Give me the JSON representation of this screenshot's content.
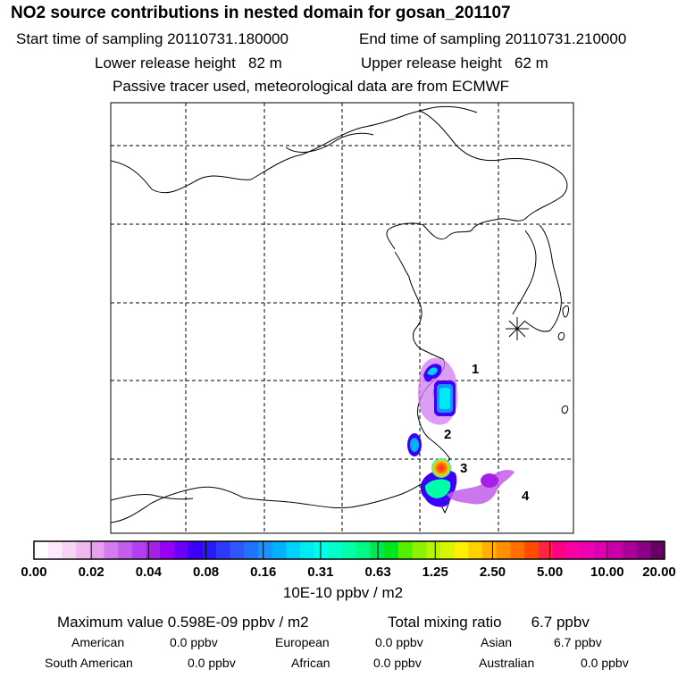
{
  "header": {
    "title": "NO2 source contributions in nested domain for gosan_201107",
    "start_time": "Start time of sampling 20110731.180000",
    "end_time": "End time of sampling 20110731.210000",
    "lower_release": "Lower release height   82 m",
    "upper_release": "Upper release height   62 m",
    "tracer_note": "Passive tracer used, meteorological data are from ECMWF"
  },
  "map": {
    "region_labels": [
      "1",
      "2",
      "3",
      "4"
    ]
  },
  "colorbar": {
    "tick_labels": [
      "0.00",
      "0.02",
      "0.04",
      "0.08",
      "0.16",
      "0.31",
      "0.63",
      "1.25",
      "2.50",
      "5.00",
      "10.00",
      "20.00"
    ],
    "colors": [
      "#ffffff",
      "#fde9fb",
      "#f8d3f6",
      "#f2b8f2",
      "#e99ef0",
      "#d27cef",
      "#c25ee9",
      "#b43ff1",
      "#a81fea",
      "#9a00f4",
      "#6c00f8",
      "#3c00fa",
      "#2a18fb",
      "#2c3bfb",
      "#2f57fd",
      "#1f75ff",
      "#1794ff",
      "#00b2ff",
      "#00d1ff",
      "#00e9f6",
      "#00ffe9",
      "#00ffcc",
      "#00ffa8",
      "#00f884",
      "#00e655",
      "#00e61d",
      "#52f000",
      "#8bf200",
      "#b6f400",
      "#d9f500",
      "#fff000",
      "#ffd100",
      "#ffb000",
      "#ff9100",
      "#ff6f00",
      "#ff4a00",
      "#ff2442",
      "#ff0083",
      "#fa00a7",
      "#ee00b3",
      "#dd00b1",
      "#c600a6",
      "#ad0098",
      "#8d0086",
      "#660063"
    ],
    "unit": "10E-10 ppbv / m2"
  },
  "summary": {
    "max_value": "Maximum value  0.598E-09 ppbv / m2",
    "total_mixing": "Total mixing ratio       6.7 ppbv",
    "american_label": "American",
    "american_value": "0.0 ppbv",
    "european_label": "European",
    "european_value": "0.0 ppbv",
    "asian_label": "Asian",
    "asian_value": "6.7 ppbv",
    "south_american_label": "South American",
    "south_american_value": "0.0 ppbv",
    "african_label": "African",
    "african_value": "0.0 ppbv",
    "australian_label": "Australian",
    "australian_value": "0.0 ppbv"
  }
}
